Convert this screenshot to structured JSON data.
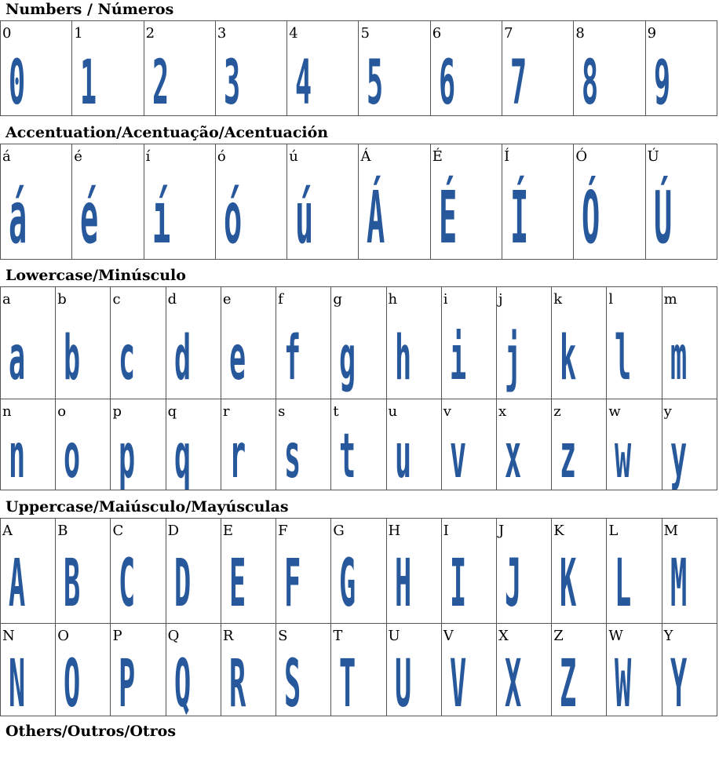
{
  "sections": {
    "numbers": {
      "title": "Numbers / Números",
      "chars": [
        "0",
        "1",
        "2",
        "3",
        "4",
        "5",
        "6",
        "7",
        "8",
        "9"
      ]
    },
    "accents": {
      "title": "Accentuation/Acentuação/Acentuación",
      "chars": [
        "á",
        "é",
        "í",
        "ó",
        "ú",
        "Á",
        "É",
        "Í",
        "Ó",
        "Ú"
      ]
    },
    "lowercase": {
      "title": "Lowercase/Minúsculo",
      "rows": [
        [
          "a",
          "b",
          "c",
          "d",
          "e",
          "f",
          "g",
          "h",
          "i",
          "j",
          "k",
          "l",
          "m"
        ],
        [
          "n",
          "o",
          "p",
          "q",
          "r",
          "s",
          "t",
          "u",
          "v",
          "x",
          "z",
          "w",
          "y"
        ]
      ]
    },
    "uppercase": {
      "title": "Uppercase/Maiúsculo/Mayúsculas",
      "rows": [
        [
          "A",
          "B",
          "C",
          "D",
          "E",
          "F",
          "G",
          "H",
          "I",
          "J",
          "K",
          "L",
          "M"
        ],
        [
          "N",
          "O",
          "P",
          "Q",
          "R",
          "S",
          "T",
          "U",
          "V",
          "X",
          "Z",
          "W",
          "Y"
        ]
      ]
    },
    "others": {
      "title": "Others/Outros/Otros"
    }
  },
  "colors": {
    "glyph": "#27589c",
    "border": "#555555"
  }
}
